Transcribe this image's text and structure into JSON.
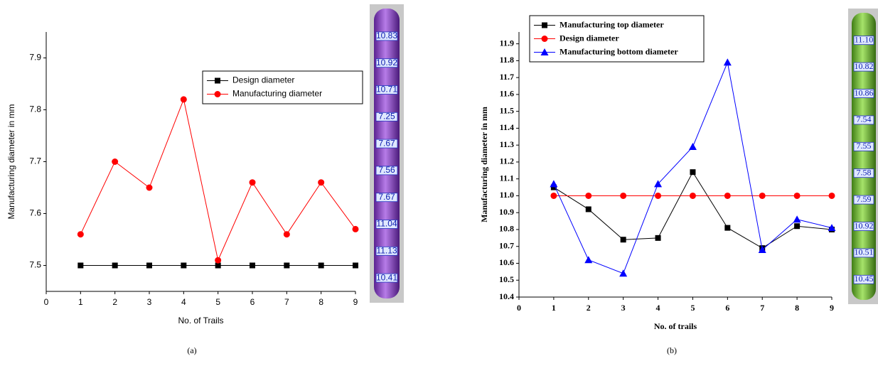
{
  "chart_data": [
    {
      "type": "line",
      "caption": "(a)",
      "x_label": "No. of Trails",
      "y_label": "Manufacturing diameter in mm",
      "x": [
        1,
        2,
        3,
        4,
        5,
        6,
        7,
        8,
        9
      ],
      "series": [
        {
          "name": "Design diameter",
          "color": "#000000",
          "marker": "square",
          "values": [
            7.5,
            7.5,
            7.5,
            7.5,
            7.5,
            7.5,
            7.5,
            7.5,
            7.5
          ]
        },
        {
          "name": "Manufacturing diameter",
          "color": "#ff0000",
          "marker": "circle",
          "values": [
            7.56,
            7.7,
            7.65,
            7.82,
            7.51,
            7.66,
            7.56,
            7.66,
            7.57
          ]
        }
      ],
      "xlim": [
        0,
        9
      ],
      "xticks": [
        0,
        1,
        2,
        3,
        4,
        5,
        6,
        7,
        8,
        9
      ],
      "ylim": [
        7.45,
        7.95
      ],
      "yticks": [
        7.5,
        7.6,
        7.7,
        7.8,
        7.9
      ],
      "legend": "upper-right",
      "part_color": "#9b4fd0",
      "part_labels": [
        "10.83",
        "10.92",
        "10.71",
        "7.25",
        "7.67",
        "7.56",
        "7.67",
        "11.04",
        "11.13",
        "10.41"
      ]
    },
    {
      "type": "line",
      "caption": "(b)",
      "x_label": "No. of trails",
      "y_label": "Manufacturing diameter in mm",
      "x": [
        1,
        2,
        3,
        4,
        5,
        6,
        7,
        8,
        9
      ],
      "series": [
        {
          "name": "Manufacturing top diameter",
          "color": "#000000",
          "marker": "square",
          "values": [
            11.05,
            10.92,
            10.74,
            10.75,
            11.14,
            10.81,
            10.69,
            10.82,
            10.8
          ]
        },
        {
          "name": "Design diameter",
          "color": "#ff0000",
          "marker": "circle",
          "values": [
            11.0,
            11.0,
            11.0,
            11.0,
            11.0,
            11.0,
            11.0,
            11.0,
            11.0
          ]
        },
        {
          "name": "Manufacturing bottom diameter",
          "color": "#0000ff",
          "marker": "triangle",
          "values": [
            11.07,
            10.62,
            10.54,
            11.07,
            11.29,
            11.79,
            10.68,
            10.86,
            10.81
          ]
        }
      ],
      "xlim": [
        0,
        9
      ],
      "xticks": [
        0,
        1,
        2,
        3,
        4,
        5,
        6,
        7,
        8,
        9
      ],
      "ylim": [
        10.4,
        11.97
      ],
      "yticks": [
        10.4,
        10.5,
        10.6,
        10.7,
        10.8,
        10.9,
        {
          "value": 11.0,
          "label": "11.0"
        },
        11.1,
        11.2,
        11.3,
        11.4,
        11.5,
        11.6,
        11.7,
        11.8,
        11.9
      ],
      "legend": "upper-left",
      "part_color": "#7fc63a",
      "part_labels": [
        "11.10",
        "10.82",
        "10.86",
        "7.54",
        "7.55",
        "7.58",
        "7.59",
        "10.92",
        "10.51",
        "10.45"
      ]
    }
  ]
}
